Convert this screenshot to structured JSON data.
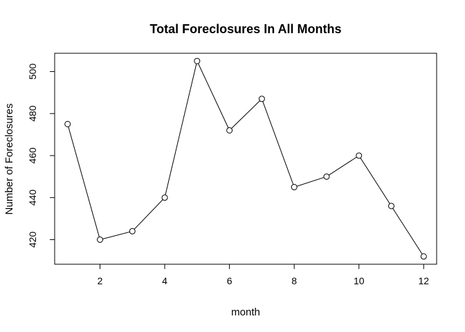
{
  "chart_data": {
    "type": "line",
    "title": "Total Foreclosures In All Months",
    "xlabel": "month",
    "ylabel": "Number of Foreclosures",
    "x": [
      1,
      2,
      3,
      4,
      5,
      6,
      7,
      8,
      9,
      10,
      11,
      12
    ],
    "series": [
      {
        "values": [
          475,
          420,
          424,
          440,
          505,
          472,
          487,
          445,
          450,
          460,
          436,
          412
        ]
      }
    ],
    "xlim": [
      0.6,
      12.4
    ],
    "ylim": [
      408.3,
      508.7
    ],
    "xticks": [
      2,
      4,
      6,
      8,
      10,
      12
    ],
    "yticks": [
      420,
      440,
      460,
      480,
      500
    ],
    "markers": "open-circle",
    "grid": false,
    "line_color": "#000000"
  }
}
